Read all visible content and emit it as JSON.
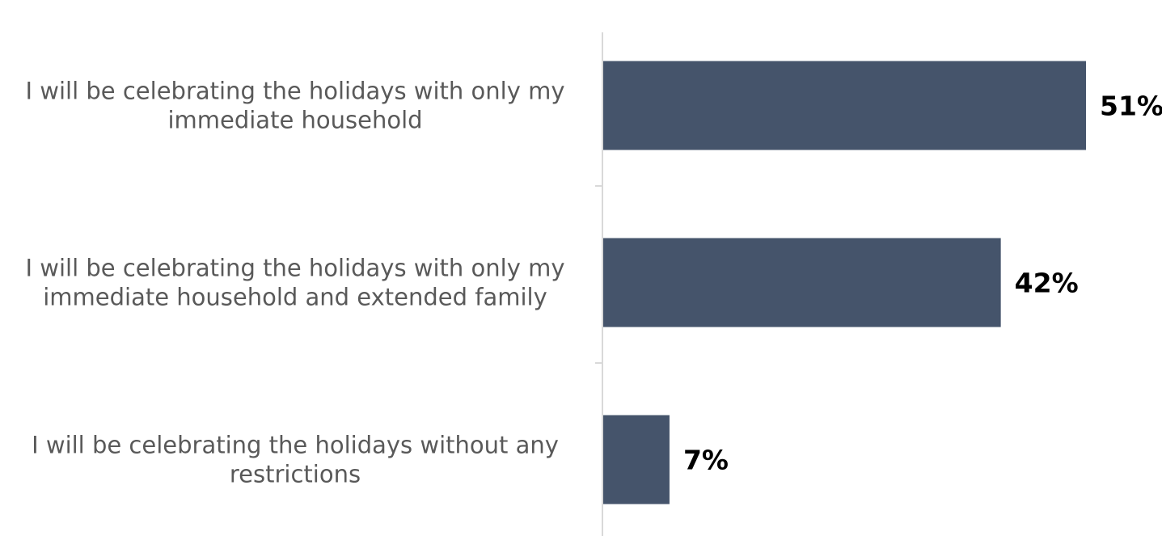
{
  "chart_data": {
    "type": "bar",
    "orientation": "horizontal",
    "categories": [
      "I will be celebrating the holidays with only my immediate household",
      "I will be celebrating the holidays with only my immediate household and extended family",
      "I will be celebrating the holidays without any restrictions"
    ],
    "category_lines": [
      [
        "I will be celebrating the holidays with only my",
        "immediate household"
      ],
      [
        "I will be celebrating the holidays with only my",
        "immediate household and extended family"
      ],
      [
        "I will be celebrating the holidays without any",
        "restrictions"
      ]
    ],
    "values": [
      51,
      42,
      7
    ],
    "value_labels": [
      "51%",
      "42%",
      "7%"
    ],
    "xlim": [
      0,
      51
    ],
    "grid": false,
    "legend": "none",
    "colors": {
      "bar": "#45546B",
      "axis": "#D9D9D9",
      "category_text": "#595959",
      "value_text": "#000000"
    }
  }
}
